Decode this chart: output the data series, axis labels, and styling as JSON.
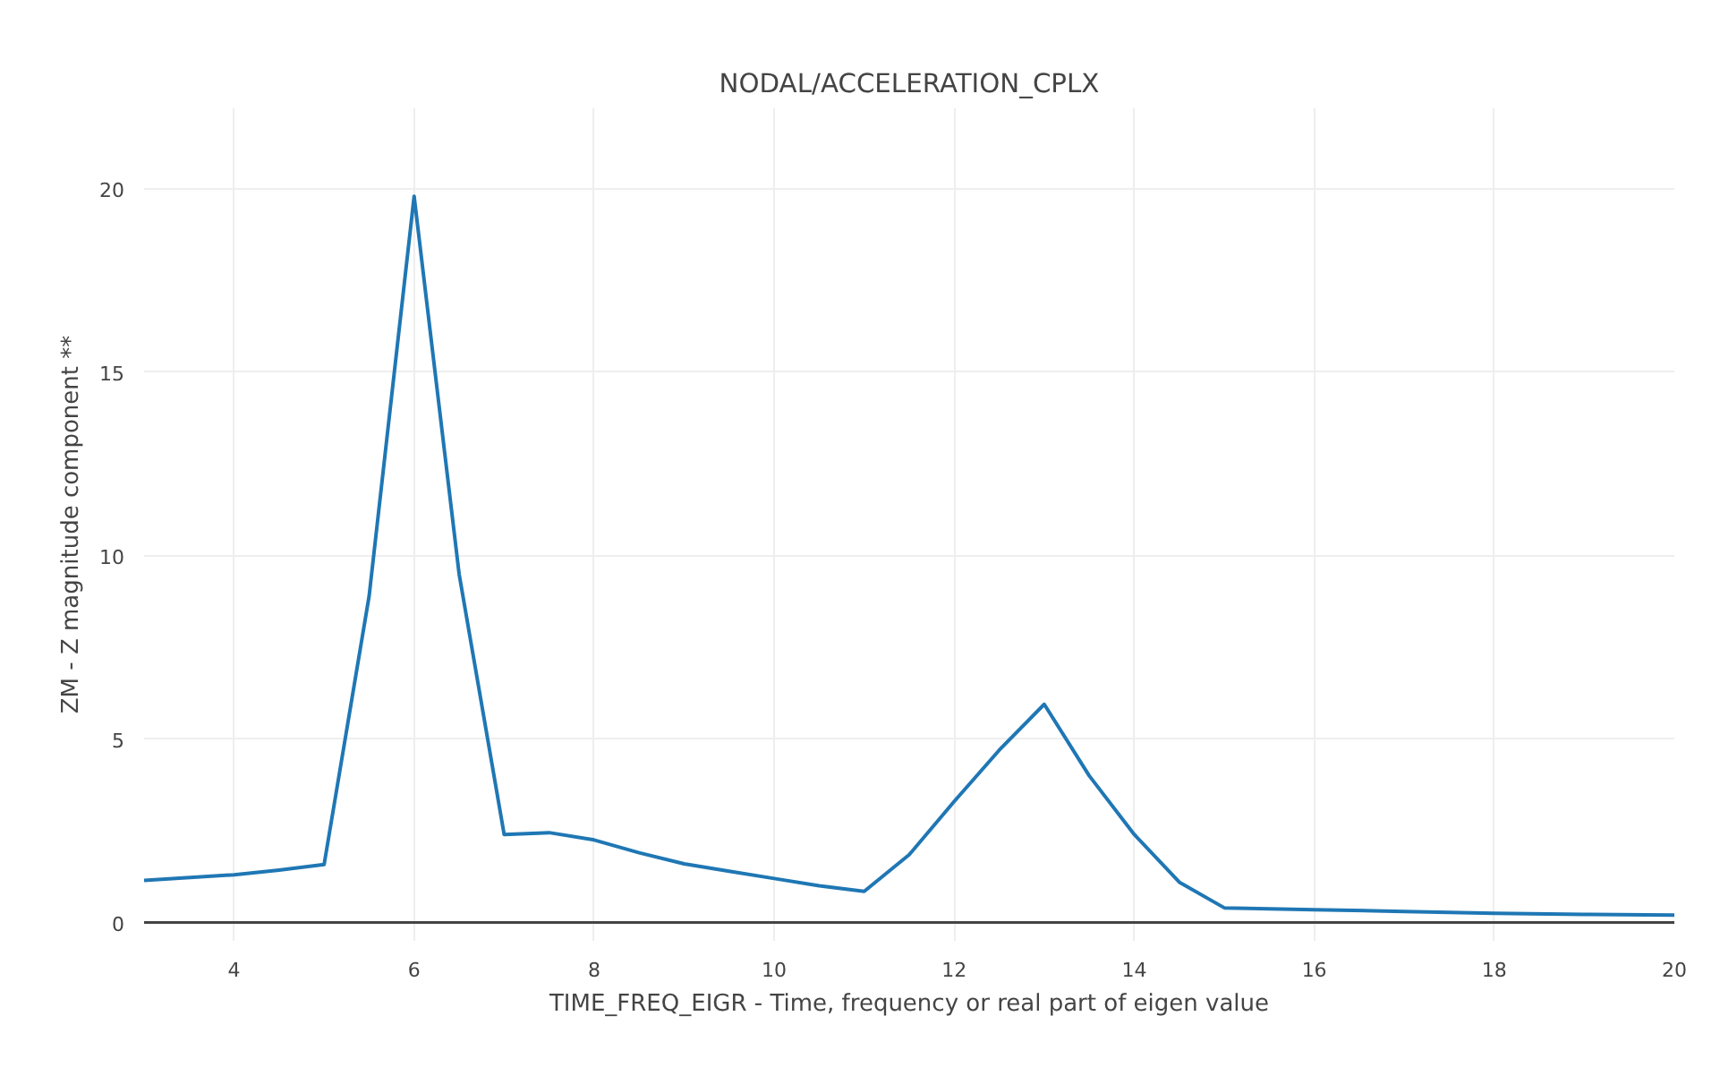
{
  "chart_data": {
    "type": "line",
    "title": "NODAL/ACCELERATION_CPLX",
    "xlabel": "TIME_FREQ_EIGR - Time, frequency or real part of eigen value",
    "ylabel": "ZM - Z magnitude component **",
    "x": [
      3,
      4,
      4.5,
      5,
      5.5,
      6,
      6.5,
      7,
      7.5,
      8,
      8.5,
      9,
      9.5,
      10,
      10.5,
      11,
      11.5,
      12,
      12.5,
      13,
      13.5,
      14,
      14.5,
      15,
      16,
      17,
      18,
      19,
      20
    ],
    "series": [
      {
        "color": "#1f77b4",
        "values": [
          1.15,
          1.3,
          1.43,
          1.58,
          8.9,
          19.8,
          9.5,
          2.4,
          2.45,
          2.25,
          1.9,
          1.6,
          1.4,
          1.2,
          1.0,
          0.85,
          1.85,
          3.3,
          4.7,
          5.95,
          4.0,
          2.4,
          1.1,
          0.4,
          0.35,
          0.3,
          0.25,
          0.22,
          0.2
        ]
      }
    ],
    "xlim": [
      3,
      20
    ],
    "ylim": [
      -0.5,
      22.2
    ],
    "xticks": [
      4,
      6,
      8,
      10,
      12,
      14,
      16,
      18,
      20
    ],
    "yticks": [
      0,
      5,
      10,
      15,
      20
    ],
    "grid": true,
    "marker": "none",
    "line_style": "solid"
  }
}
